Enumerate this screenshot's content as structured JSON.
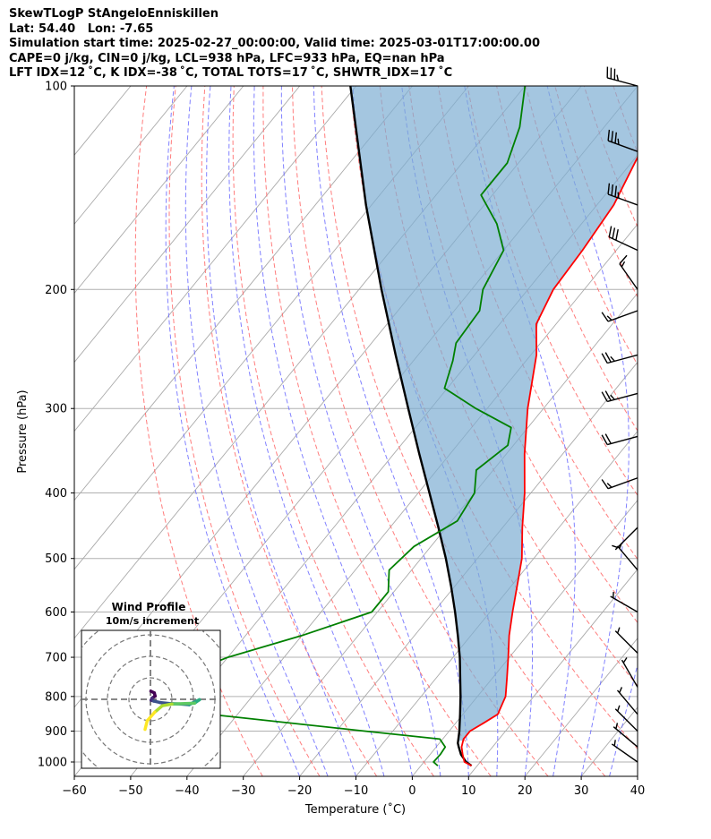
{
  "header": {
    "station": "SkewTLogP StAngeloEnniskillen",
    "location": "Lat: 54.40   Lon: -7.65",
    "times": "Simulation start time: 2025-02-27_00:00:00, Valid time: 2025-03-01T17:00:00.00",
    "params1": "CAPE=0 j/kg, CIN=0 j/kg, LCL=938 hPa, LFC=933 hPa, EQ=nan hPa",
    "params2": "LFT IDX=12$^\\circ$C, K IDX=-38$^\\circ$C, TOTAL TOTS=17$^\\circ$C, SHWTR_IDX=17$^\\circ$C"
  },
  "header_display": {
    "params2": "LFT IDX=12 ˚C, K IDX=-38 ˚C, TOTAL TOTS=17 ˚C, SHWTR_IDX=17 ˚C"
  },
  "chart_data": {
    "type": "skewt-logp",
    "xlabel": "Temperature (˚C)",
    "ylabel": "Pressure (hPa)",
    "xlim": [
      -60,
      40
    ],
    "ylim": [
      1050,
      100
    ],
    "x_ticks": [
      -60,
      -50,
      -40,
      -30,
      -20,
      -10,
      0,
      10,
      20,
      30,
      40
    ],
    "x_tick_labels": [
      "−60",
      "−50",
      "−40",
      "−30",
      "−20",
      "−10",
      "0",
      "10",
      "20",
      "30",
      "40"
    ],
    "y_ticks": [
      1000,
      900,
      800,
      700,
      600,
      500,
      400,
      300,
      200,
      100
    ],
    "y_tick_labels": [
      "1000",
      "900",
      "800",
      "700",
      "600",
      "500",
      "400",
      "300",
      "200",
      "100"
    ],
    "grid": true,
    "colors": {
      "temperature": "#ff0000",
      "dewpoint": "#008000",
      "parcel": "#000000",
      "cape_fill": "#7eaed3",
      "dry_adiabat": "#ff6666",
      "moist_adiabat": "#6b6bff",
      "mixing_ratio": "#888888",
      "isotherm": "#aaaaaa"
    },
    "temperature_profile": [
      {
        "p": 1013,
        "t": 9.0
      },
      {
        "p": 1000,
        "t": 7.2
      },
      {
        "p": 975,
        "t": 5.8
      },
      {
        "p": 950,
        "t": 4.5
      },
      {
        "p": 925,
        "t": 3.7
      },
      {
        "p": 900,
        "t": 3.7
      },
      {
        "p": 875,
        "t": 5.0
      },
      {
        "p": 850,
        "t": 6.2
      },
      {
        "p": 800,
        "t": 5.0
      },
      {
        "p": 750,
        "t": 2.5
      },
      {
        "p": 700,
        "t": -0.2
      },
      {
        "p": 650,
        "t": -3.2
      },
      {
        "p": 600,
        "t": -6.0
      },
      {
        "p": 550,
        "t": -8.9
      },
      {
        "p": 500,
        "t": -12.1
      },
      {
        "p": 450,
        "t": -16.5
      },
      {
        "p": 400,
        "t": -21.1
      },
      {
        "p": 350,
        "t": -26.8
      },
      {
        "p": 300,
        "t": -32.8
      },
      {
        "p": 250,
        "t": -39.0
      },
      {
        "p": 225,
        "t": -43.5
      },
      {
        "p": 200,
        "t": -45.5
      },
      {
        "p": 175,
        "t": -46.0
      },
      {
        "p": 150,
        "t": -47.0
      },
      {
        "p": 125,
        "t": -50.0
      },
      {
        "p": 110,
        "t": -55.0
      },
      {
        "p": 100,
        "t": -59.0
      }
    ],
    "dewpoint_profile": [
      {
        "p": 1013,
        "t": 3.0
      },
      {
        "p": 1000,
        "t": 1.7
      },
      {
        "p": 975,
        "t": 1.8
      },
      {
        "p": 950,
        "t": 1.6
      },
      {
        "p": 925,
        "t": -0.5
      },
      {
        "p": 900,
        "t": -15.0
      },
      {
        "p": 850,
        "t": -45.0
      },
      {
        "p": 800,
        "t": -60.0
      },
      {
        "p": 750,
        "t": -56.0
      },
      {
        "p": 700,
        "t": -50.0
      },
      {
        "p": 650,
        "t": -40.0
      },
      {
        "p": 600,
        "t": -31.0
      },
      {
        "p": 560,
        "t": -31.0
      },
      {
        "p": 520,
        "t": -34.0
      },
      {
        "p": 480,
        "t": -33.0
      },
      {
        "p": 440,
        "t": -29.0
      },
      {
        "p": 400,
        "t": -30.0
      },
      {
        "p": 370,
        "t": -33.0
      },
      {
        "p": 340,
        "t": -31.0
      },
      {
        "p": 320,
        "t": -33.0
      },
      {
        "p": 300,
        "t": -42.0
      },
      {
        "p": 280,
        "t": -50.5
      },
      {
        "p": 255,
        "t": -53.0
      },
      {
        "p": 240,
        "t": -55.0
      },
      {
        "p": 215,
        "t": -55.5
      },
      {
        "p": 200,
        "t": -58.0
      },
      {
        "p": 175,
        "t": -60.0
      },
      {
        "p": 160,
        "t": -65.0
      },
      {
        "p": 145,
        "t": -72.0
      },
      {
        "p": 130,
        "t": -72.0
      },
      {
        "p": 115,
        "t": -75.0
      },
      {
        "p": 100,
        "t": -80.0
      }
    ],
    "parcel_profile": [
      {
        "p": 1013,
        "t": 9.0
      },
      {
        "p": 1000,
        "t": 7.5
      },
      {
        "p": 975,
        "t": 5.5
      },
      {
        "p": 950,
        "t": 4.0
      },
      {
        "p": 938,
        "t": 3.3
      },
      {
        "p": 900,
        "t": 1.8
      },
      {
        "p": 850,
        "t": -0.5
      },
      {
        "p": 800,
        "t": -3.0
      },
      {
        "p": 750,
        "t": -5.8
      },
      {
        "p": 700,
        "t": -8.8
      },
      {
        "p": 650,
        "t": -12.3
      },
      {
        "p": 600,
        "t": -16.2
      },
      {
        "p": 550,
        "t": -20.6
      },
      {
        "p": 500,
        "t": -25.6
      },
      {
        "p": 450,
        "t": -31.4
      },
      {
        "p": 400,
        "t": -38.0
      },
      {
        "p": 350,
        "t": -45.5
      },
      {
        "p": 300,
        "t": -54.0
      },
      {
        "p": 250,
        "t": -64.0
      },
      {
        "p": 200,
        "t": -76.0
      },
      {
        "p": 150,
        "t": -91.0
      },
      {
        "p": 100,
        "t": -111.0
      }
    ],
    "wind_barbs": [
      {
        "p": 100,
        "speed_kt": 35,
        "dir_deg": 285
      },
      {
        "p": 125,
        "speed_kt": 35,
        "dir_deg": 290
      },
      {
        "p": 150,
        "speed_kt": 35,
        "dir_deg": 290
      },
      {
        "p": 175,
        "speed_kt": 30,
        "dir_deg": 295
      },
      {
        "p": 200,
        "speed_kt": 15,
        "dir_deg": 325
      },
      {
        "p": 215,
        "speed_kt": 15,
        "dir_deg": 250
      },
      {
        "p": 250,
        "speed_kt": 25,
        "dir_deg": 255
      },
      {
        "p": 285,
        "speed_kt": 25,
        "dir_deg": 255
      },
      {
        "p": 330,
        "speed_kt": 20,
        "dir_deg": 255
      },
      {
        "p": 380,
        "speed_kt": 15,
        "dir_deg": 250
      },
      {
        "p": 450,
        "speed_kt": 5,
        "dir_deg": 225
      },
      {
        "p": 520,
        "speed_kt": 5,
        "dir_deg": 320
      },
      {
        "p": 600,
        "speed_kt": 5,
        "dir_deg": 300
      },
      {
        "p": 690,
        "speed_kt": 5,
        "dir_deg": 315
      },
      {
        "p": 775,
        "speed_kt": 5,
        "dir_deg": 330
      },
      {
        "p": 850,
        "speed_kt": 5,
        "dir_deg": 320
      },
      {
        "p": 900,
        "speed_kt": 5,
        "dir_deg": 315
      },
      {
        "p": 950,
        "speed_kt": 5,
        "dir_deg": 310
      },
      {
        "p": 1000,
        "speed_kt": 5,
        "dir_deg": 305
      }
    ],
    "hodograph": {
      "title": "Wind Profile",
      "subtitle": "10m/s increment",
      "ring_increment_ms": 10,
      "points_uv_ms": [
        [
          0.2,
          3.8
        ],
        [
          1.8,
          3.0
        ],
        [
          2.2,
          1.5
        ],
        [
          0.8,
          0.6
        ],
        [
          0.3,
          -0.4
        ],
        [
          1.5,
          -0.8
        ],
        [
          4.5,
          -1.5
        ],
        [
          9.0,
          -2.0
        ],
        [
          14.0,
          -2.2
        ],
        [
          18.0,
          -2.5
        ],
        [
          20.0,
          -1.5
        ],
        [
          21.5,
          -0.8
        ],
        [
          22.8,
          -0.2
        ],
        [
          20.5,
          -1.8
        ],
        [
          16.0,
          -2.0
        ],
        [
          10.0,
          -2.2
        ],
        [
          5.5,
          -3.0
        ],
        [
          2.0,
          -6.0
        ],
        [
          -1.5,
          -10.0
        ],
        [
          -2.5,
          -14.0
        ]
      ]
    }
  }
}
